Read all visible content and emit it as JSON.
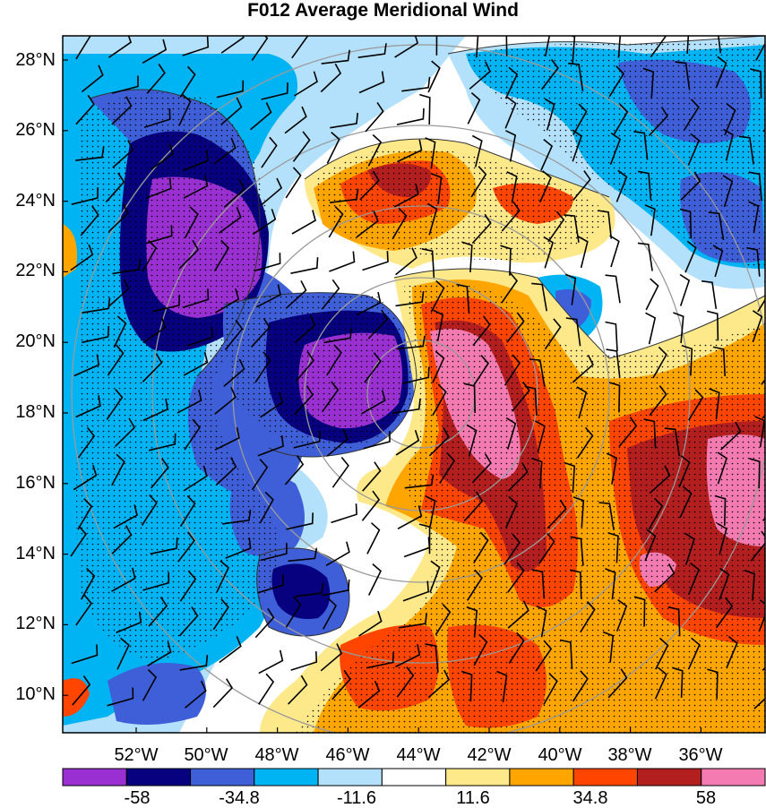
{
  "title": "F012 Average Meridional Wind",
  "lat_labels": [
    "28°N",
    "26°N",
    "24°N",
    "22°N",
    "20°N",
    "18°N",
    "16°N",
    "14°N",
    "12°N",
    "10°N"
  ],
  "lon_labels": [
    "52°W",
    "50°W",
    "48°W",
    "46°W",
    "44°W",
    "42°W",
    "40°W",
    "38°W",
    "36°W"
  ],
  "colorbar": {
    "colors": [
      "#9a30d2",
      "#07007f",
      "#3f5fd8",
      "#00b3f3",
      "#b3e0fa",
      "#ffffff",
      "#fde98a",
      "#ffa500",
      "#ff4500",
      "#b31f1f",
      "#f47bb1"
    ],
    "tick_labels": [
      "-58",
      "-34.8",
      "-11.6",
      "11.6",
      "34.8",
      "58"
    ]
  },
  "colors": {
    "range_rings": "#9a9a9a",
    "contour_line": "#333333",
    "barb": "#000000"
  }
}
